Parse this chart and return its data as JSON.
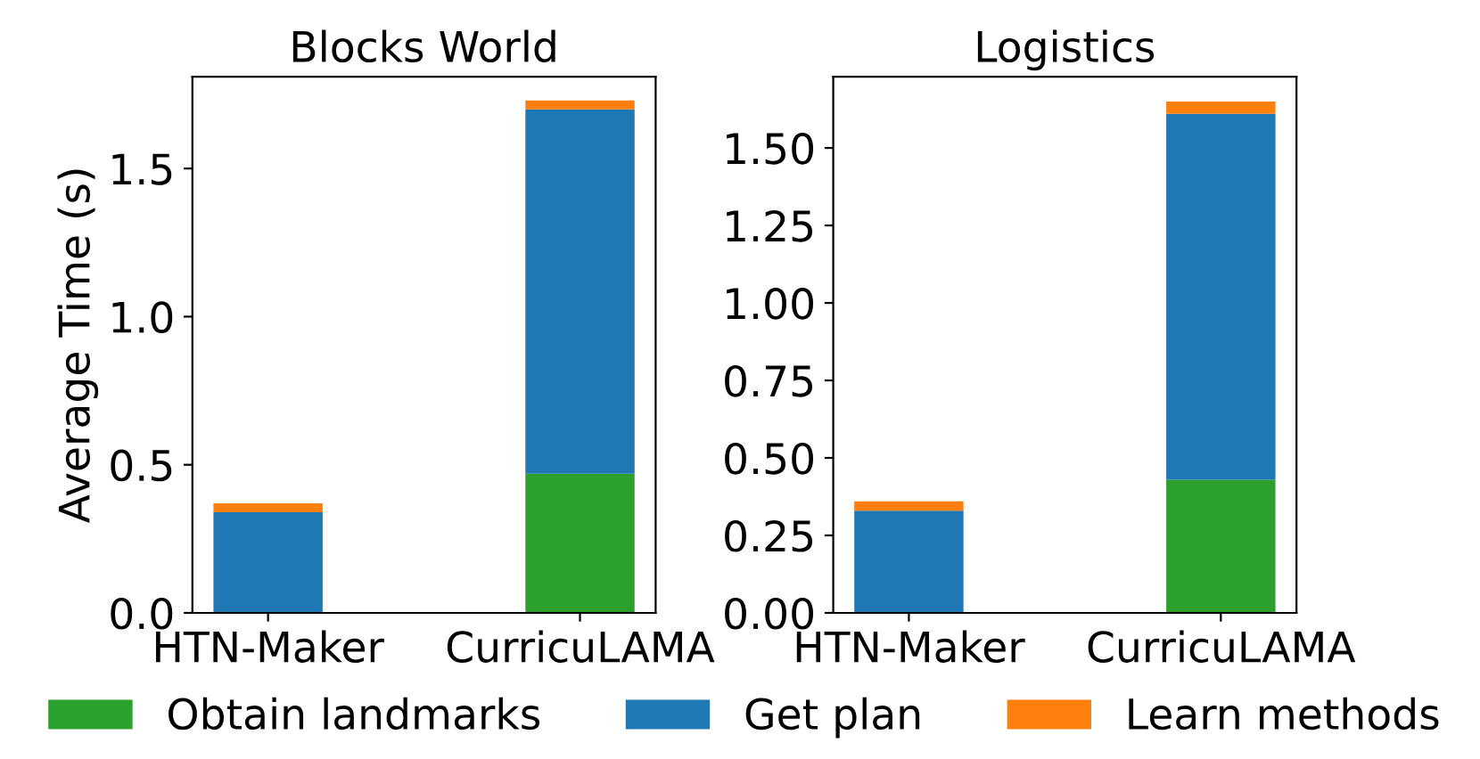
{
  "chart_data": [
    {
      "type": "bar",
      "title": "Blocks World",
      "ylabel": "Average Time (s)",
      "categories": [
        "HTN-Maker",
        "CurricuLAMA"
      ],
      "stacked": true,
      "legend": "bottom",
      "series": [
        {
          "name": "Obtain landmarks",
          "color": "#2ca02c",
          "values": [
            null,
            0.47
          ]
        },
        {
          "name": "Get plan",
          "color": "#1f77b4",
          "values": [
            0.34,
            1.23
          ]
        },
        {
          "name": "Learn methods",
          "color": "#ff7f0e",
          "values": [
            0.03,
            0.03
          ]
        }
      ],
      "ylim": [
        0,
        1.81
      ],
      "yticks": [
        {
          "value": 0,
          "label": "0.0"
        },
        0.5,
        {
          "value": 1,
          "label": "1.0"
        },
        1.5
      ]
    },
    {
      "type": "bar",
      "title": "Logistics",
      "categories": [
        "HTN-Maker",
        "CurricuLAMA"
      ],
      "stacked": true,
      "legend": "bottom",
      "series": [
        {
          "name": "Obtain landmarks",
          "color": "#2ca02c",
          "values": [
            null,
            0.43
          ]
        },
        {
          "name": "Get plan",
          "color": "#1f77b4",
          "values": [
            0.33,
            1.18
          ]
        },
        {
          "name": "Learn methods",
          "color": "#ff7f0e",
          "values": [
            0.03,
            0.04
          ]
        }
      ],
      "ylim": [
        0,
        1.73
      ],
      "yticks": [
        {
          "value": 0,
          "label": "0.00"
        },
        0.25,
        {
          "value": 0.5,
          "label": "0.50"
        },
        0.75,
        {
          "value": 1,
          "label": "1.00"
        },
        1.25,
        {
          "value": 1.5,
          "label": "1.50"
        }
      ]
    }
  ]
}
